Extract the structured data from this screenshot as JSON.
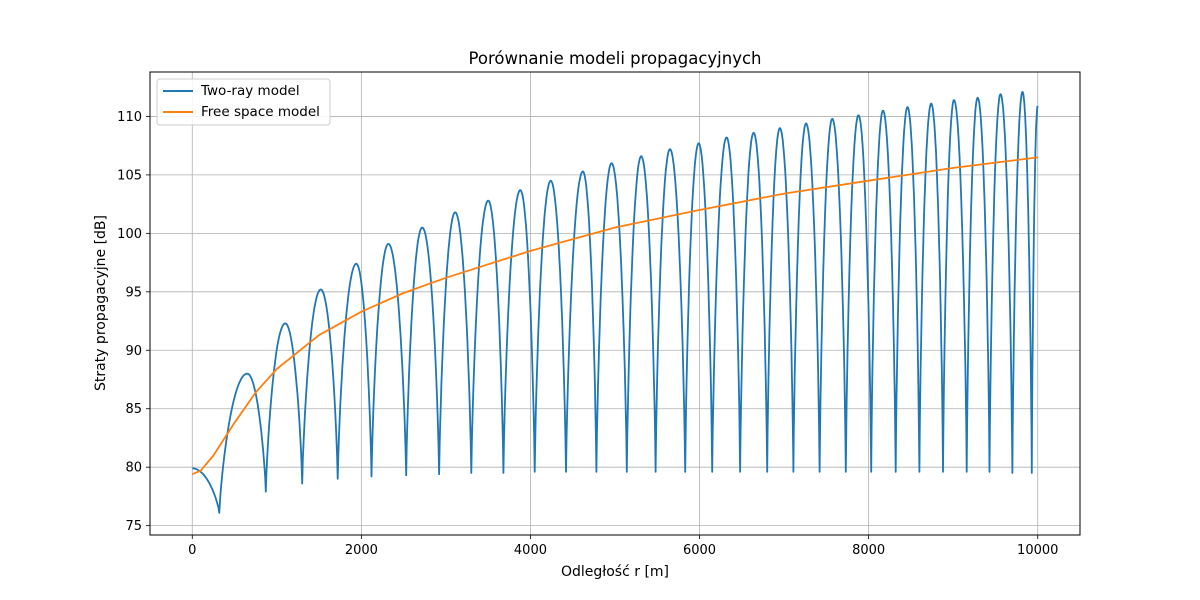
{
  "chart_data": {
    "type": "line",
    "title": "Porównanie modeli propagacyjnych",
    "xlabel": "Odległość r [m]",
    "ylabel": "Straty propagacyjne [dB]",
    "xlim": [
      -500,
      10500
    ],
    "ylim": [
      74.2,
      113.8
    ],
    "xticks": [
      0,
      2000,
      4000,
      6000,
      8000,
      10000
    ],
    "yticks": [
      75,
      80,
      85,
      90,
      95,
      100,
      105,
      110
    ],
    "grid": true,
    "legend_position": "top-left",
    "series": [
      {
        "name": "Two-ray model",
        "color": "#1f77b4",
        "model": "two-ray",
        "x": [
          0,
          320,
          650,
          870,
          1100,
          1300,
          1520,
          1720,
          1940,
          2120,
          2320,
          2530,
          2720,
          2920,
          3110,
          3300,
          3500,
          3680,
          3880,
          4050,
          4240,
          4420,
          4620,
          4780,
          4960,
          5140,
          5310,
          5480,
          5650,
          5830,
          5990,
          6150,
          6320,
          6480,
          6640,
          6800,
          6950,
          7110,
          7260,
          7420,
          7570,
          7730,
          7880,
          8030,
          8170,
          8320,
          8460,
          8600,
          8740,
          8880,
          9010,
          9160,
          9290,
          9430,
          9560,
          9700,
          9820,
          9930,
          10000
        ],
        "y": [
          79.9,
          76.1,
          88.0,
          77.9,
          92.3,
          78.6,
          95.2,
          79.0,
          97.4,
          79.2,
          99.1,
          79.3,
          100.5,
          79.4,
          101.8,
          79.5,
          102.8,
          79.5,
          103.7,
          79.6,
          104.5,
          79.6,
          105.3,
          79.6,
          106.0,
          79.6,
          106.6,
          79.6,
          107.2,
          79.6,
          107.7,
          79.6,
          108.2,
          79.6,
          108.6,
          79.6,
          109.0,
          79.6,
          109.4,
          79.6,
          109.8,
          79.6,
          110.1,
          79.6,
          110.5,
          79.6,
          110.8,
          79.6,
          111.1,
          79.6,
          111.4,
          79.6,
          111.6,
          79.6,
          111.9,
          79.5,
          112.1,
          79.5,
          110.9
        ]
      },
      {
        "name": "Free space model",
        "color": "#ff7f0e",
        "model": "free-space",
        "x": [
          0,
          100,
          250,
          500,
          750,
          1000,
          1500,
          2000,
          2500,
          3000,
          4000,
          5000,
          6000,
          7000,
          8000,
          9000,
          10000
        ],
        "y": [
          79.4,
          79.7,
          81.0,
          83.8,
          86.4,
          88.4,
          91.3,
          93.3,
          94.9,
          96.2,
          98.5,
          100.5,
          102.0,
          103.4,
          104.5,
          105.6,
          106.5
        ]
      }
    ]
  }
}
